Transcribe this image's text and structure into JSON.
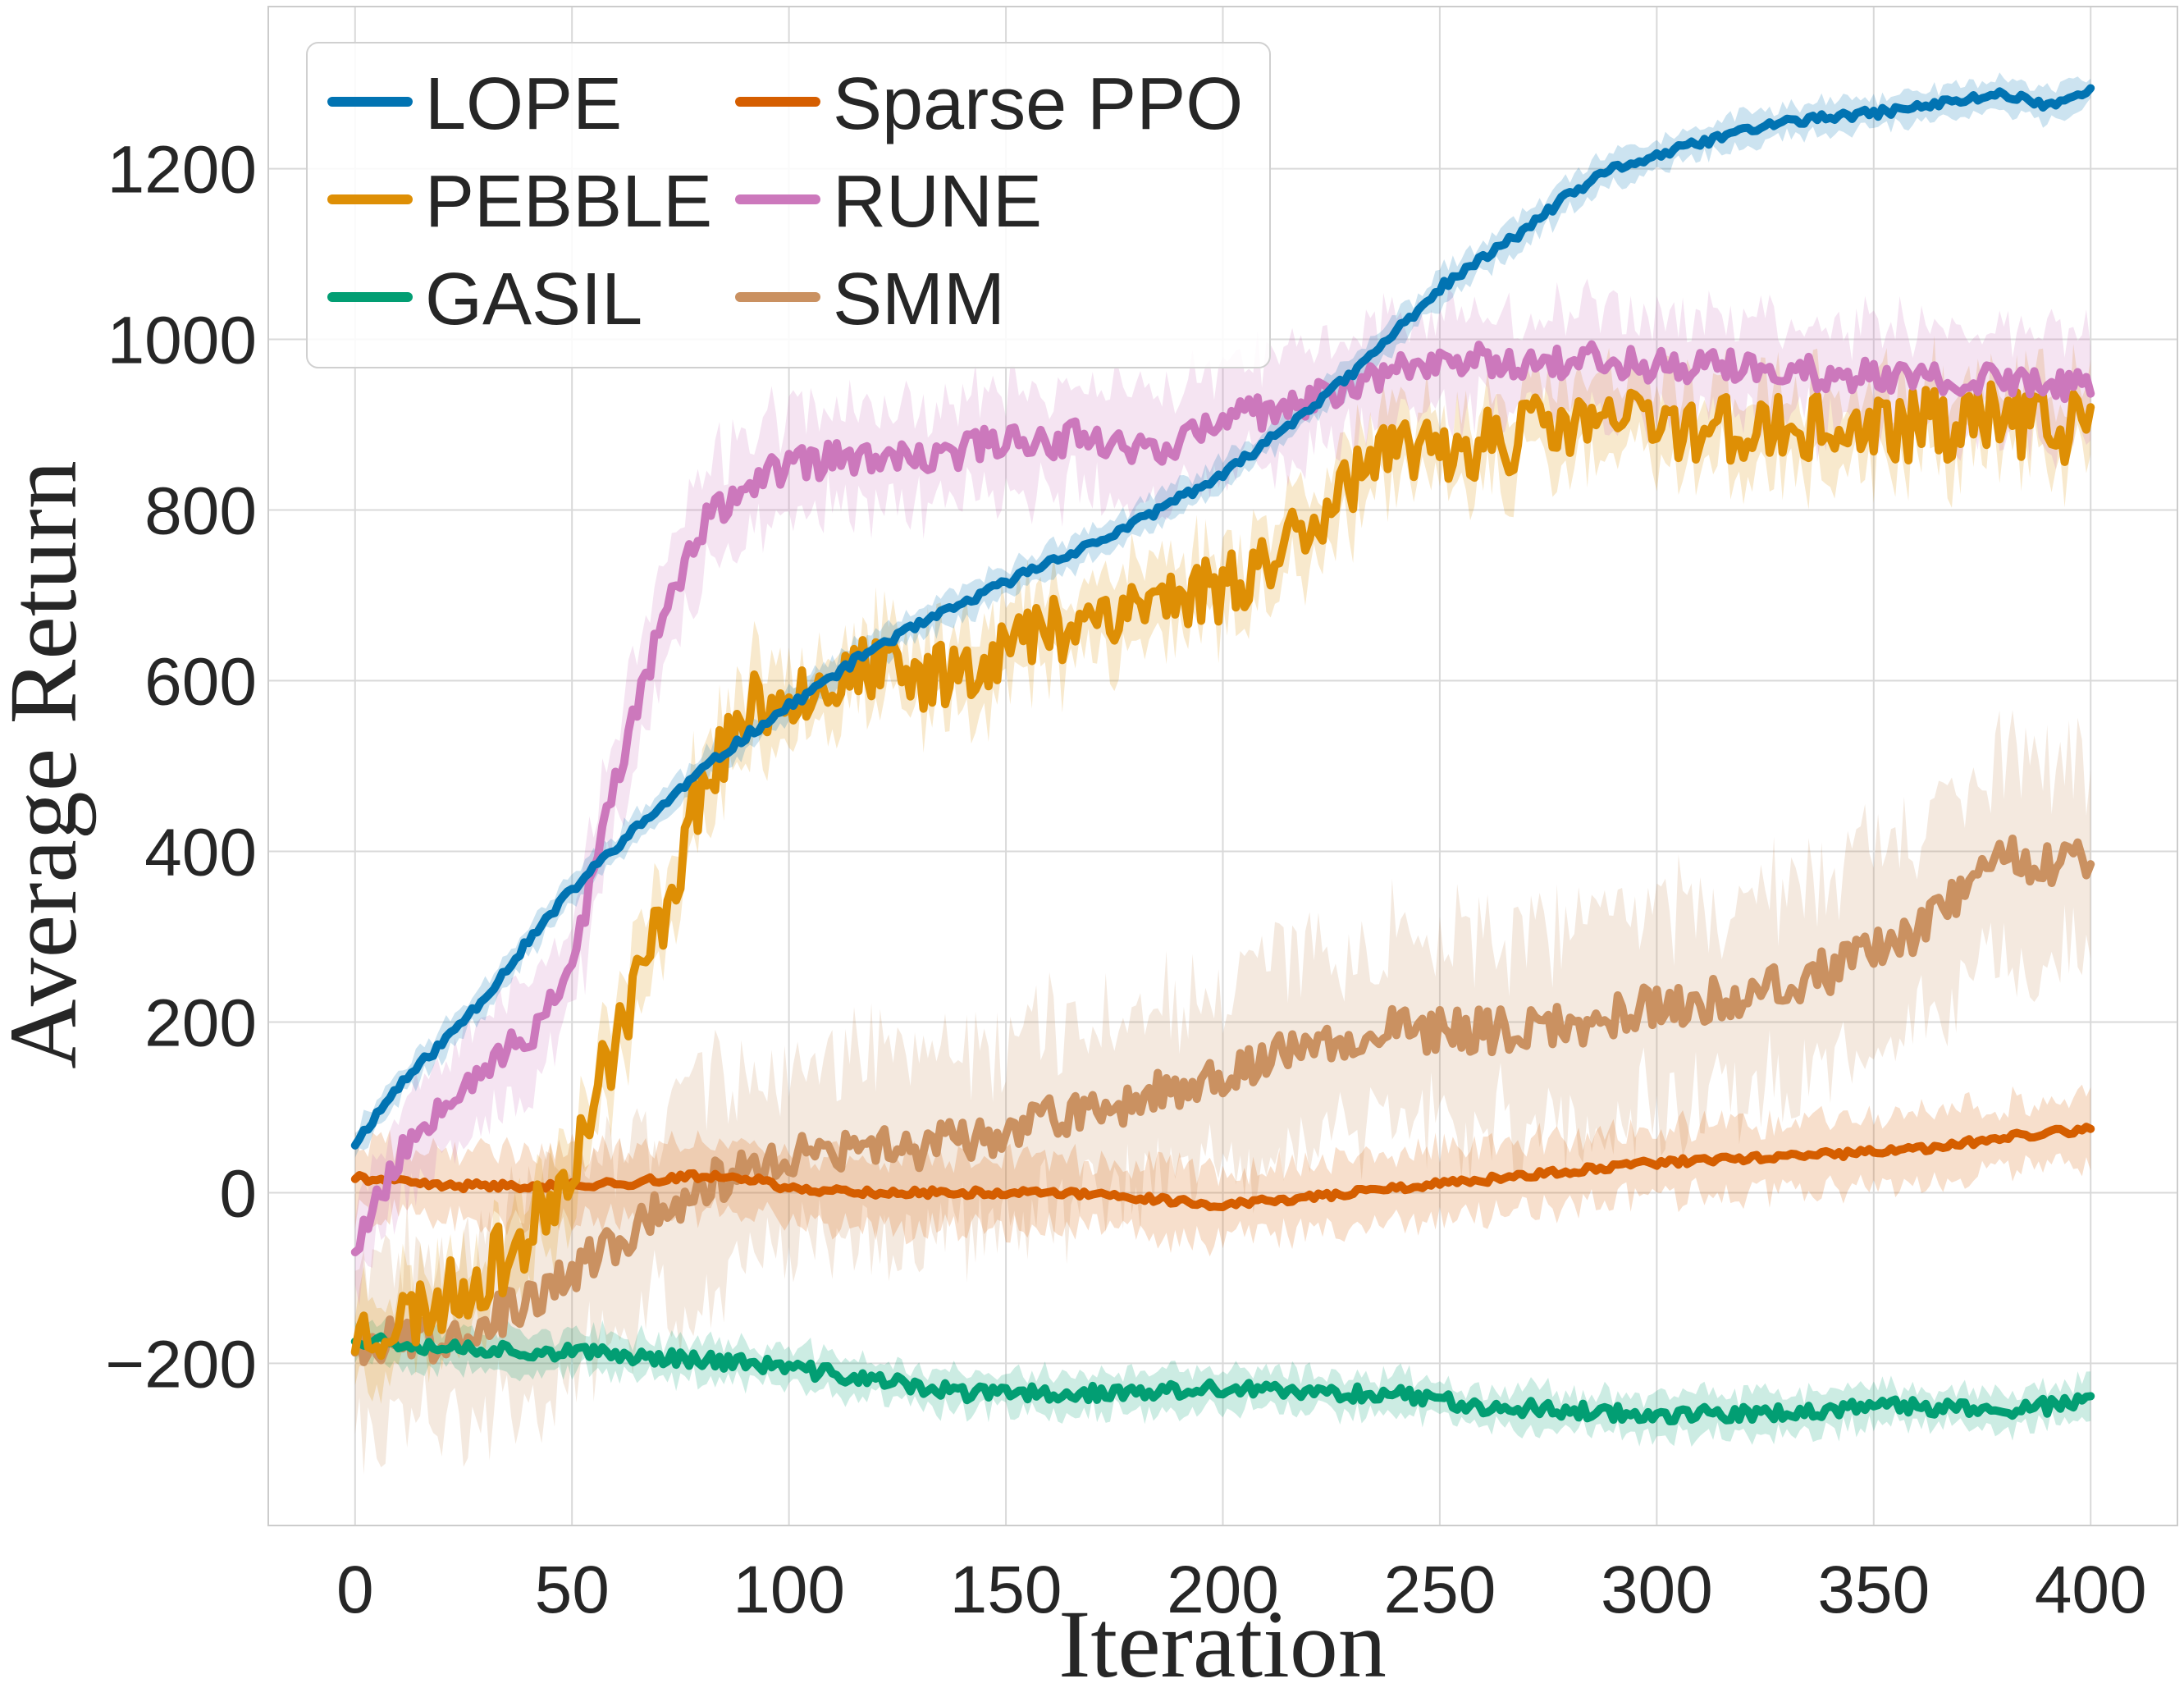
{
  "chart_data": {
    "type": "line",
    "title": "",
    "xlabel": "Iteration",
    "ylabel": "Average Return",
    "xlim": [
      -20,
      420
    ],
    "ylim": [
      -390,
      1390
    ],
    "xticks": [
      0,
      50,
      100,
      150,
      200,
      250,
      300,
      350,
      400
    ],
    "yticks": [
      -200,
      0,
      200,
      400,
      600,
      800,
      1000,
      1200
    ],
    "xtick_labels": [
      "0",
      "50",
      "100",
      "150",
      "200",
      "250",
      "300",
      "350",
      "400"
    ],
    "ytick_labels": [
      "−200",
      "0",
      "200",
      "400",
      "600",
      "800",
      "1000",
      "1200"
    ],
    "grid": true,
    "legend_position": "top-left",
    "legend_columns": 2,
    "series": [
      {
        "name": "LOPE",
        "color": "#0173b2",
        "noise": 5,
        "band": 18,
        "seed": 11,
        "points": [
          [
            0,
            58
          ],
          [
            10,
            125
          ],
          [
            20,
            175
          ],
          [
            30,
            230
          ],
          [
            40,
            295
          ],
          [
            50,
            355
          ],
          [
            60,
            405
          ],
          [
            70,
            450
          ],
          [
            80,
            495
          ],
          [
            90,
            535
          ],
          [
            100,
            570
          ],
          [
            110,
            605
          ],
          [
            120,
            640
          ],
          [
            130,
            665
          ],
          [
            140,
            690
          ],
          [
            150,
            715
          ],
          [
            160,
            740
          ],
          [
            170,
            760
          ],
          [
            180,
            785
          ],
          [
            190,
            815
          ],
          [
            200,
            840
          ],
          [
            210,
            880
          ],
          [
            220,
            920
          ],
          [
            230,
            960
          ],
          [
            240,
            1010
          ],
          [
            250,
            1060
          ],
          [
            260,
            1095
          ],
          [
            270,
            1130
          ],
          [
            280,
            1170
          ],
          [
            290,
            1200
          ],
          [
            300,
            1215
          ],
          [
            310,
            1230
          ],
          [
            320,
            1245
          ],
          [
            330,
            1255
          ],
          [
            340,
            1260
          ],
          [
            350,
            1265
          ],
          [
            360,
            1272
          ],
          [
            370,
            1280
          ],
          [
            380,
            1288
          ],
          [
            390,
            1275
          ],
          [
            400,
            1290
          ]
        ]
      },
      {
        "name": "PEBBLE",
        "color": "#de8f05",
        "noise": 42,
        "band": 45,
        "seed": 23,
        "points": [
          [
            0,
            -165
          ],
          [
            10,
            -150
          ],
          [
            20,
            -125
          ],
          [
            30,
            -95
          ],
          [
            40,
            -50
          ],
          [
            50,
            40
          ],
          [
            60,
            180
          ],
          [
            70,
            310
          ],
          [
            80,
            480
          ],
          [
            90,
            560
          ],
          [
            100,
            590
          ],
          [
            110,
            600
          ],
          [
            120,
            610
          ],
          [
            130,
            600
          ],
          [
            140,
            620
          ],
          [
            150,
            640
          ],
          [
            160,
            660
          ],
          [
            170,
            680
          ],
          [
            180,
            690
          ],
          [
            190,
            700
          ],
          [
            200,
            710
          ],
          [
            210,
            740
          ],
          [
            220,
            790
          ],
          [
            230,
            840
          ],
          [
            240,
            860
          ],
          [
            250,
            870
          ],
          [
            260,
            880
          ],
          [
            270,
            890
          ],
          [
            280,
            900
          ],
          [
            290,
            905
          ],
          [
            300,
            900
          ],
          [
            310,
            900
          ],
          [
            320,
            895
          ],
          [
            330,
            890
          ],
          [
            340,
            895
          ],
          [
            350,
            890
          ],
          [
            360,
            900
          ],
          [
            370,
            900
          ],
          [
            380,
            910
          ],
          [
            390,
            895
          ],
          [
            400,
            900
          ]
        ]
      },
      {
        "name": "GASIL",
        "color": "#029e73",
        "noise": 9,
        "band": 22,
        "seed": 37,
        "points": [
          [
            0,
            -170
          ],
          [
            20,
            -180
          ],
          [
            40,
            -185
          ],
          [
            60,
            -190
          ],
          [
            80,
            -195
          ],
          [
            100,
            -205
          ],
          [
            120,
            -220
          ],
          [
            140,
            -235
          ],
          [
            160,
            -235
          ],
          [
            180,
            -235
          ],
          [
            200,
            -230
          ],
          [
            220,
            -235
          ],
          [
            240,
            -235
          ],
          [
            260,
            -250
          ],
          [
            280,
            -255
          ],
          [
            300,
            -260
          ],
          [
            320,
            -260
          ],
          [
            340,
            -255
          ],
          [
            360,
            -250
          ],
          [
            380,
            -255
          ],
          [
            400,
            -245
          ]
        ]
      },
      {
        "name": "Sparse PPO",
        "color": "#d55e00",
        "noise": 4,
        "band": 40,
        "seed": 41,
        "points": [
          [
            0,
            18
          ],
          [
            20,
            8
          ],
          [
            40,
            8
          ],
          [
            60,
            10
          ],
          [
            80,
            20
          ],
          [
            90,
            18
          ],
          [
            100,
            5
          ],
          [
            120,
            0
          ],
          [
            140,
            0
          ],
          [
            160,
            0
          ],
          [
            180,
            -5
          ],
          [
            200,
            -15
          ],
          [
            220,
            -5
          ],
          [
            240,
            5
          ],
          [
            260,
            15
          ],
          [
            280,
            25
          ],
          [
            300,
            35
          ],
          [
            320,
            40
          ],
          [
            340,
            45
          ],
          [
            360,
            50
          ],
          [
            380,
            65
          ],
          [
            400,
            75
          ]
        ]
      },
      {
        "name": "RUNE",
        "color": "#cc78bc",
        "noise": 20,
        "band": 60,
        "seed": 53,
        "points": [
          [
            0,
            -60
          ],
          [
            10,
            40
          ],
          [
            20,
            110
          ],
          [
            30,
            150
          ],
          [
            40,
            180
          ],
          [
            50,
            270
          ],
          [
            60,
            480
          ],
          [
            70,
            660
          ],
          [
            80,
            780
          ],
          [
            90,
            830
          ],
          [
            100,
            850
          ],
          [
            110,
            860
          ],
          [
            120,
            860
          ],
          [
            130,
            855
          ],
          [
            140,
            870
          ],
          [
            150,
            885
          ],
          [
            160,
            880
          ],
          [
            170,
            890
          ],
          [
            180,
            870
          ],
          [
            190,
            880
          ],
          [
            200,
            905
          ],
          [
            210,
            915
          ],
          [
            220,
            925
          ],
          [
            230,
            950
          ],
          [
            240,
            965
          ],
          [
            250,
            975
          ],
          [
            260,
            975
          ],
          [
            270,
            975
          ],
          [
            280,
            975
          ],
          [
            290,
            975
          ],
          [
            300,
            970
          ],
          [
            310,
            970
          ],
          [
            320,
            965
          ],
          [
            330,
            960
          ],
          [
            340,
            960
          ],
          [
            350,
            955
          ],
          [
            360,
            955
          ],
          [
            370,
            950
          ],
          [
            380,
            950
          ],
          [
            390,
            950
          ],
          [
            400,
            945
          ]
        ]
      },
      {
        "name": "SMM",
        "color": "#ca9161",
        "noise": 26,
        "band": 110,
        "seed": 67,
        "points": [
          [
            0,
            -175
          ],
          [
            20,
            -170
          ],
          [
            40,
            -130
          ],
          [
            60,
            -60
          ],
          [
            80,
            10
          ],
          [
            100,
            40
          ],
          [
            120,
            50
          ],
          [
            140,
            60
          ],
          [
            160,
            85
          ],
          [
            180,
            110
          ],
          [
            200,
            140
          ],
          [
            220,
            175
          ],
          [
            240,
            190
          ],
          [
            260,
            190
          ],
          [
            280,
            195
          ],
          [
            300,
            220
          ],
          [
            320,
            230
          ],
          [
            340,
            260
          ],
          [
            360,
            300
          ],
          [
            370,
            350
          ],
          [
            380,
            400
          ],
          [
            390,
            380
          ],
          [
            400,
            390
          ]
        ]
      }
    ]
  }
}
